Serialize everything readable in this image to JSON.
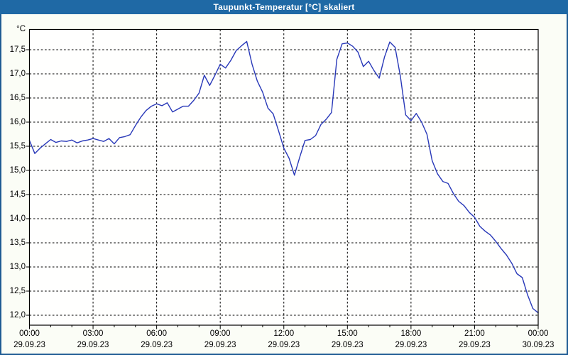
{
  "window": {
    "title": "Taupunkt-Temperatur [°C] skaliert",
    "colors": {
      "titlebar_bg": "#1f69a5",
      "titlebar_text": "#ffffff",
      "border": "#1f5c94",
      "page_bg": "#fbfdf6",
      "plot_bg": "#fffffe",
      "grid": "#000000",
      "axis": "#000000",
      "tick_text": "#000000",
      "line": "#2838b8"
    }
  },
  "chart_data": {
    "type": "line",
    "title": "Taupunkt-Temperatur [°C] skaliert",
    "y_unit": "°C",
    "grid": "dashed, horizontal every 0.5 °C, vertical every 3 h",
    "legend": "none",
    "xlim_hours": [
      0,
      24
    ],
    "ylim": [
      11.8,
      17.95
    ],
    "y_ticks": [
      {
        "value": 17.5,
        "label": "17,5"
      },
      {
        "value": 17.0,
        "label": "17,0"
      },
      {
        "value": 16.5,
        "label": "16,5"
      },
      {
        "value": 16.0,
        "label": "16,0"
      },
      {
        "value": 15.5,
        "label": "15,5"
      },
      {
        "value": 15.0,
        "label": "15,0"
      },
      {
        "value": 14.5,
        "label": "14,5"
      },
      {
        "value": 14.0,
        "label": "14,0"
      },
      {
        "value": 13.5,
        "label": "13,5"
      },
      {
        "value": 13.0,
        "label": "13,0"
      },
      {
        "value": 12.5,
        "label": "12,5"
      },
      {
        "value": 12.0,
        "label": "12,0"
      }
    ],
    "x_ticks": [
      {
        "t": 0,
        "time": "00:00",
        "date": "29.09.23"
      },
      {
        "t": 3,
        "time": "03:00",
        "date": "29.09.23"
      },
      {
        "t": 6,
        "time": "06:00",
        "date": "29.09.23"
      },
      {
        "t": 9,
        "time": "09:00",
        "date": "29.09.23"
      },
      {
        "t": 12,
        "time": "12:00",
        "date": "29.09.23"
      },
      {
        "t": 15,
        "time": "15:00",
        "date": "29.09.23"
      },
      {
        "t": 18,
        "time": "18:00",
        "date": "29.09.23"
      },
      {
        "t": 21,
        "time": "21:00",
        "date": "29.09.23"
      },
      {
        "t": 24,
        "time": "00:00",
        "date": "30.09.23"
      }
    ],
    "minor_tick_interval_hours": 1,
    "series": [
      {
        "name": "Taupunkt-Temperatur",
        "x_start_hour": 0,
        "x_step_hours": 0.25,
        "values": [
          15.62,
          15.35,
          15.46,
          15.55,
          15.64,
          15.58,
          15.61,
          15.6,
          15.63,
          15.57,
          15.61,
          15.63,
          15.66,
          15.63,
          15.6,
          15.66,
          15.55,
          15.68,
          15.7,
          15.74,
          15.93,
          16.1,
          16.24,
          16.33,
          16.38,
          16.34,
          16.4,
          16.21,
          16.27,
          16.33,
          16.33,
          16.45,
          16.6,
          16.97,
          16.76,
          16.97,
          17.2,
          17.12,
          17.28,
          17.48,
          17.58,
          17.67,
          17.2,
          16.85,
          16.62,
          16.29,
          16.17,
          15.82,
          15.46,
          15.25,
          14.9,
          15.27,
          15.62,
          15.64,
          15.72,
          15.95,
          16.06,
          16.2,
          17.3,
          17.62,
          17.64,
          17.57,
          17.45,
          17.15,
          17.26,
          17.07,
          16.91,
          17.35,
          17.66,
          17.55,
          16.95,
          16.15,
          16.03,
          16.18,
          16.0,
          15.75,
          15.2,
          14.93,
          14.77,
          14.73,
          14.52,
          14.36,
          14.27,
          14.13,
          14.03,
          13.84,
          13.74,
          13.66,
          13.53,
          13.38,
          13.25,
          13.08,
          12.86,
          12.78,
          12.42,
          12.14,
          12.05
        ]
      }
    ]
  }
}
